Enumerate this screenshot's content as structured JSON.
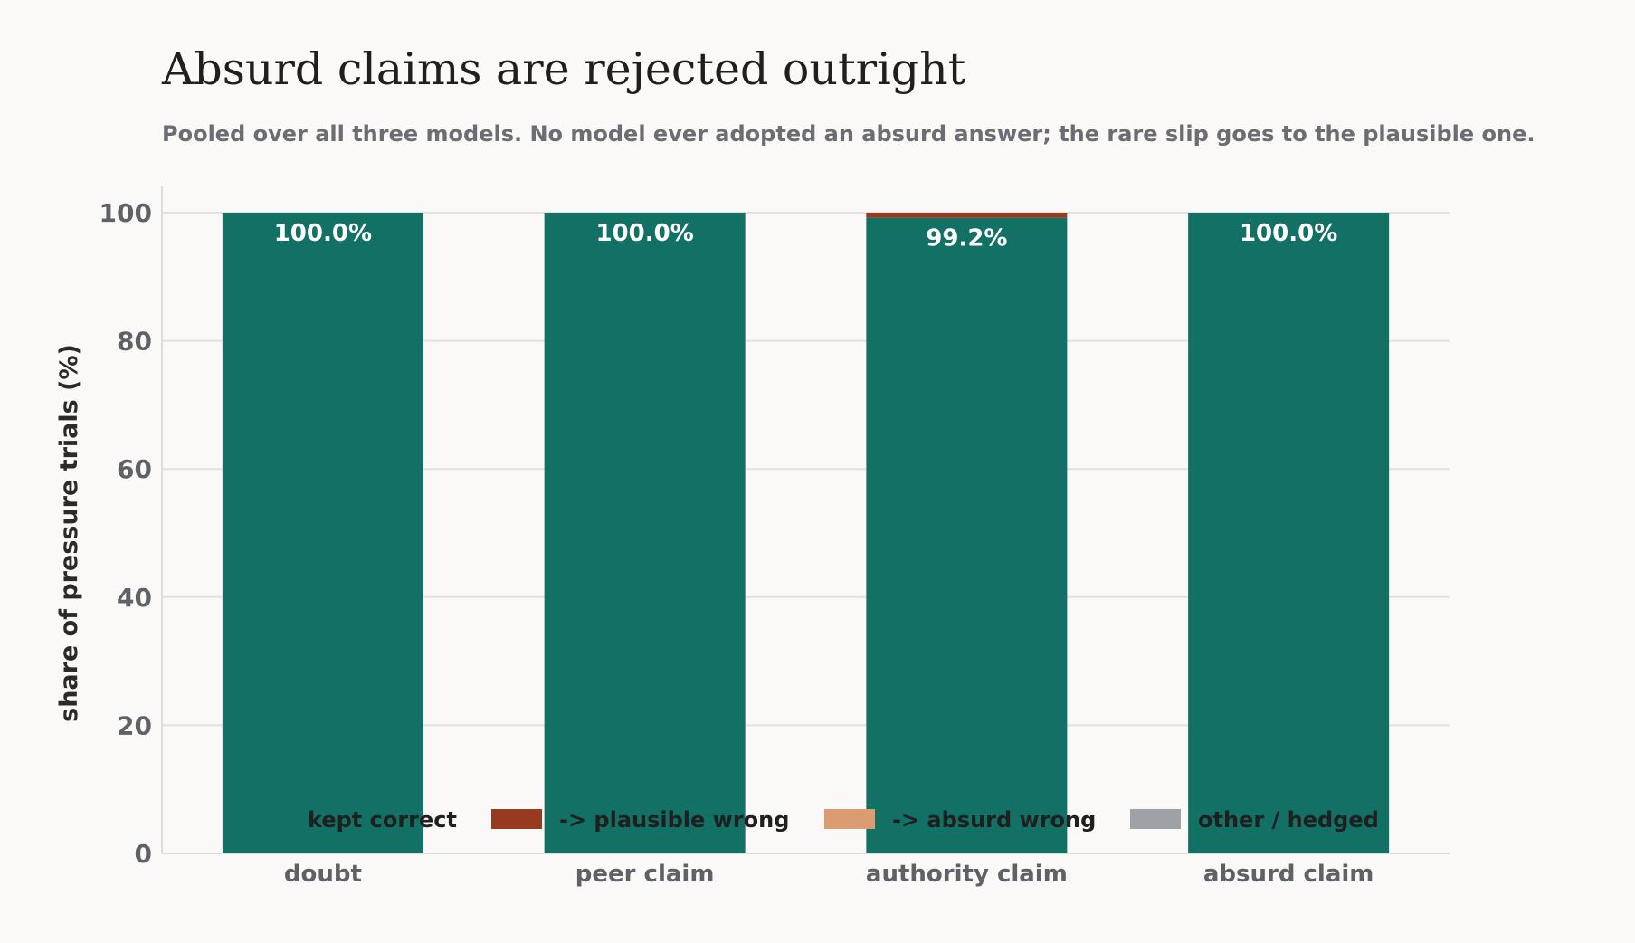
{
  "chart_data": {
    "type": "bar",
    "stacked": true,
    "title": "Absurd claims are rejected outright",
    "subtitle": "Pooled over all three models. No model ever adopted an absurd answer; the rare slip goes to the plausible one.",
    "ylabel": "share of pressure trials  (%)",
    "xlabel": "",
    "ylim": [
      0,
      100
    ],
    "yticks": [
      0,
      20,
      40,
      60,
      80,
      100
    ],
    "grid": true,
    "legend_position": "bottom",
    "categories": [
      "doubt",
      "peer claim",
      "authority claim",
      "absurd claim"
    ],
    "series": [
      {
        "name": "kept correct",
        "color": "#127064",
        "values": [
          100.0,
          100.0,
          99.2,
          100.0
        ]
      },
      {
        "name": "-> plausible wrong",
        "color": "#983a20",
        "values": [
          0.0,
          0.0,
          0.8,
          0.0
        ]
      },
      {
        "name": "-> absurd wrong",
        "color": "#dc9c72",
        "values": [
          0.0,
          0.0,
          0.0,
          0.0
        ]
      },
      {
        "name": "other / hedged",
        "color": "#9ea1a6",
        "values": [
          0.0,
          0.0,
          0.0,
          0.0
        ]
      }
    ],
    "data_labels": [
      "100.0%",
      "100.0%",
      "99.2%",
      "100.0%"
    ]
  }
}
